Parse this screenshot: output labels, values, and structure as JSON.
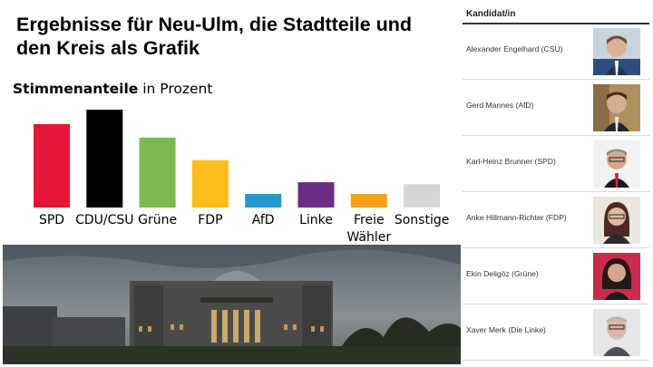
{
  "title": "Ergebnisse für Neu-Ulm, die Stadtteile und den Kreis als Grafik",
  "chart_heading": {
    "bold": "Stimmenanteile",
    "rest": " in Prozent"
  },
  "chart_data": {
    "type": "bar",
    "categories": [
      "SPD",
      "CDU/CSU",
      "Grüne",
      "FDP",
      "AfD",
      "Linke",
      "Freie Wähler",
      "Sonstige"
    ],
    "colors": [
      "#e3163a",
      "#000000",
      "#7cb94f",
      "#fbbd1b",
      "#2596d0",
      "#6b2d86",
      "#f4a21c",
      "#d6d6d6"
    ],
    "values": [
      21.5,
      25.2,
      18.0,
      12.2,
      3.5,
      6.5,
      3.5,
      6.0
    ],
    "title": "Stimmenanteile in Prozent",
    "xlabel": "",
    "ylabel": "",
    "ylim": [
      0,
      28
    ]
  },
  "candidates": {
    "header": "Kandidat/in",
    "items": [
      {
        "name": "Alexander Engelhard (CSU)",
        "photo": "portrait-photo"
      },
      {
        "name": "Gerd Mannes (AfD)",
        "photo": "portrait-photo"
      },
      {
        "name": "Karl-Heinz Brunner (SPD)",
        "photo": "portrait-photo"
      },
      {
        "name": "Anke Hillmann-Richter (FDP)",
        "photo": "portrait-photo"
      },
      {
        "name": "Ekin Deligöz (Grüne)",
        "photo": "portrait-photo"
      },
      {
        "name": "Xaver Merk (Die Linke)",
        "photo": "portrait-photo"
      }
    ]
  }
}
